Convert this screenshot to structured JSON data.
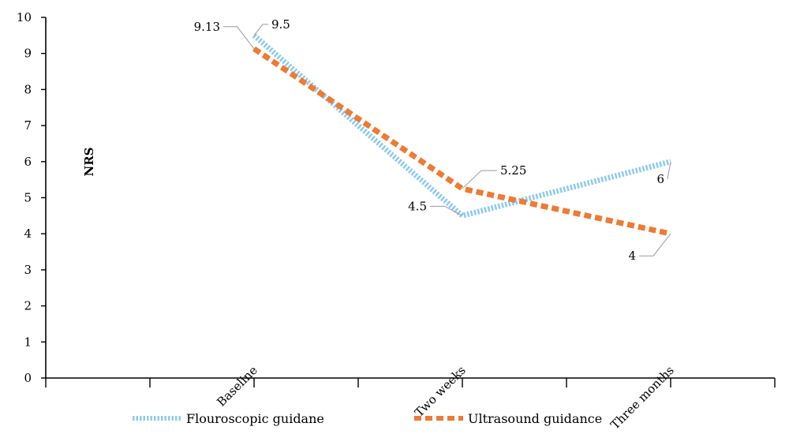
{
  "chart_data": {
    "type": "line",
    "title": "",
    "xlabel": "",
    "ylabel": "NRS",
    "ylim": [
      0,
      10
    ],
    "yticks": [
      0,
      1,
      2,
      3,
      4,
      5,
      6,
      7,
      8,
      9,
      10
    ],
    "categories": [
      "Baseline",
      "Two weeks",
      "Three months"
    ],
    "series": [
      {
        "name": "Flouroscopic guidane",
        "values": [
          9.5,
          4.5,
          6
        ],
        "labels": [
          "9.5",
          "4.5",
          "6"
        ],
        "color": "#8ecbee",
        "style": "dotted"
      },
      {
        "name": "Ultrasound guidance",
        "values": [
          9.13,
          5.25,
          4
        ],
        "labels": [
          "9.13",
          "5.25",
          "4"
        ],
        "color": "#ee7a33",
        "style": "dashed"
      }
    ],
    "legend_position": "bottom",
    "grid": false
  }
}
